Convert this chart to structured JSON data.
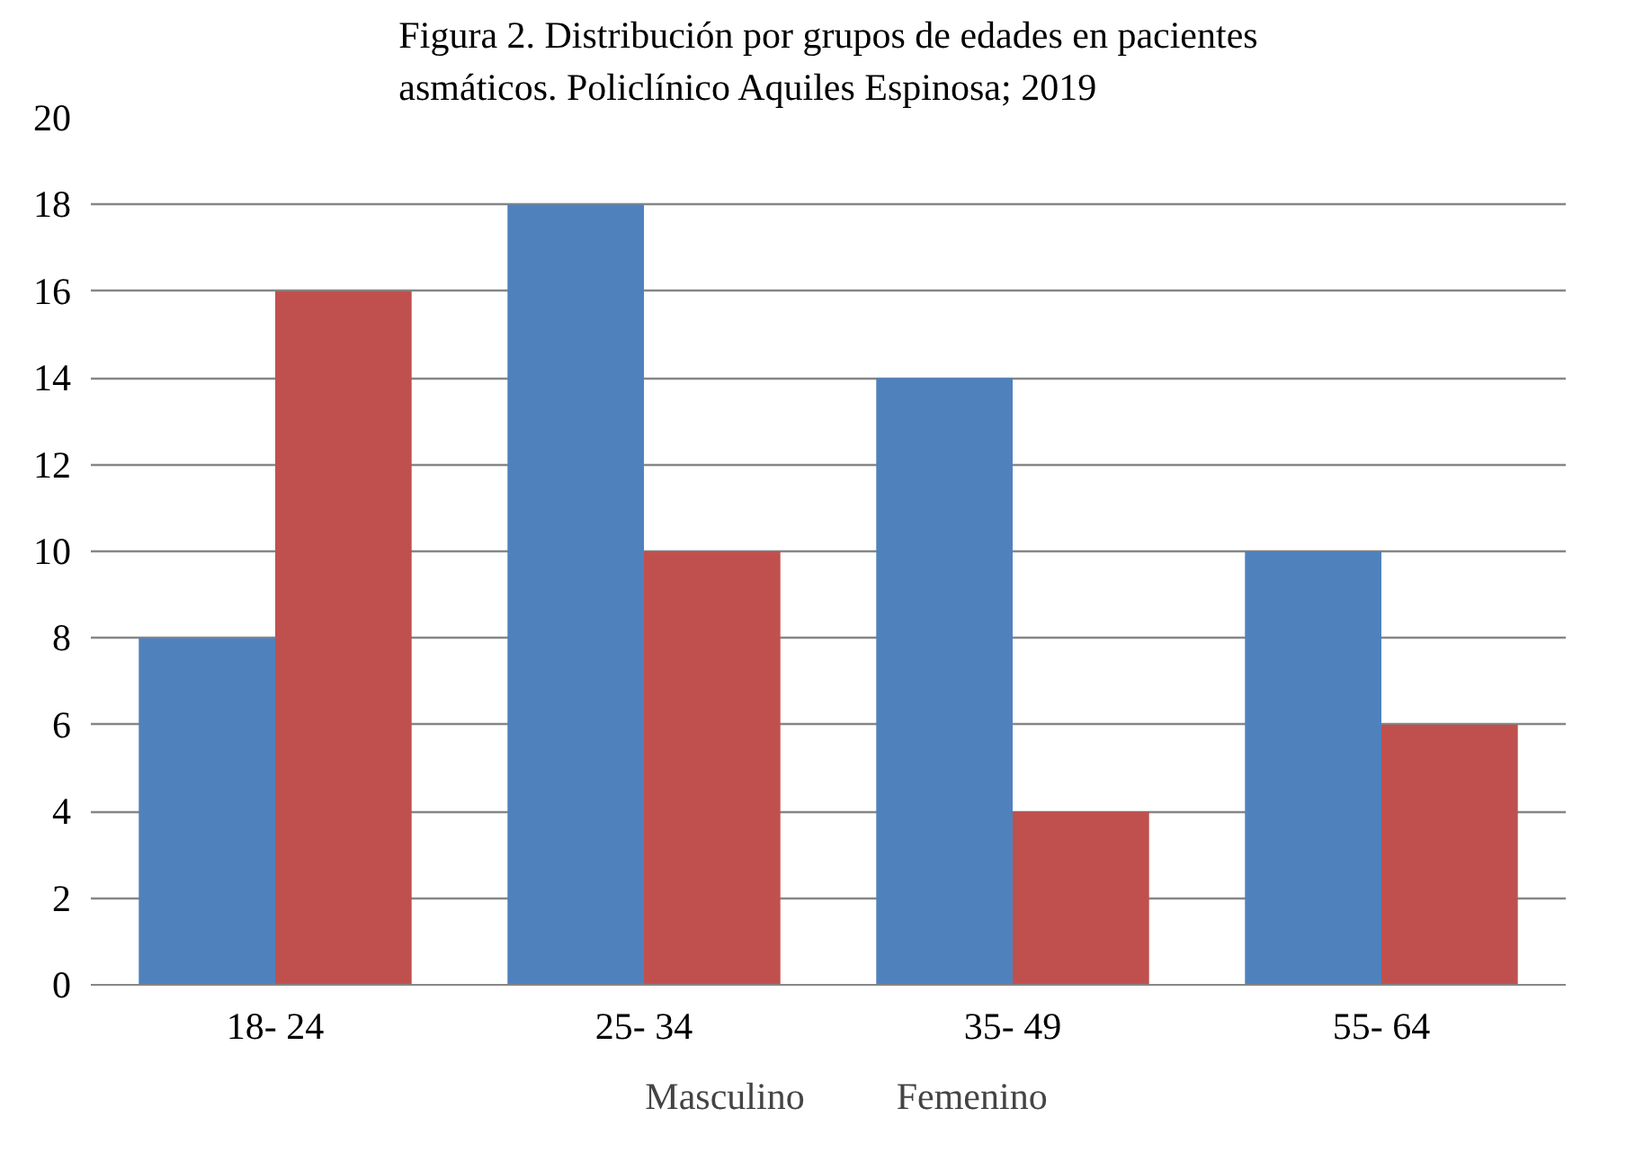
{
  "chart_data": {
    "type": "bar",
    "title": "Figura 2. Distribución por grupos de edades en pacientes asmáticos. Policlínico Aquiles Espinosa; 2019",
    "categories": [
      "18- 24",
      "25- 34",
      "35- 49",
      "55- 64"
    ],
    "series": [
      {
        "name": "Masculino",
        "color": "#4f81bd",
        "values": [
          8,
          18,
          14,
          10
        ]
      },
      {
        "name": "Femenino",
        "color": "#c0504d",
        "values": [
          16,
          10,
          4,
          6
        ]
      }
    ],
    "ylim": [
      0,
      20
    ],
    "yticks": [
      0,
      2,
      4,
      6,
      8,
      10,
      12,
      14,
      16,
      18,
      20
    ],
    "grid": "y",
    "legend": "bottom"
  }
}
